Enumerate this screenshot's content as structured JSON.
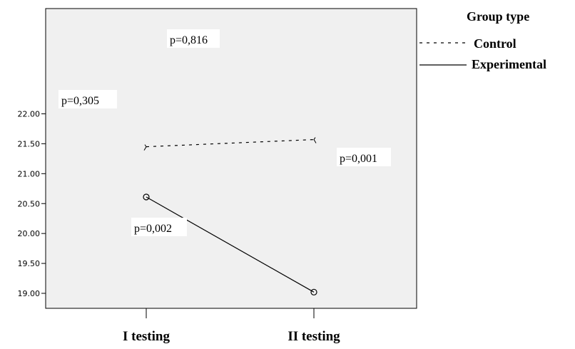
{
  "chart_data": {
    "type": "line",
    "categories": [
      "I testing",
      "II testing"
    ],
    "ylim": [
      18.9,
      22.2
    ],
    "yticks": [
      "19.00",
      "19.50",
      "20.00",
      "20.50",
      "21.00",
      "21.50",
      "22.00"
    ],
    "series": [
      {
        "name": "Control",
        "values": [
          21.45,
          21.57
        ],
        "style": "dashed",
        "color": "#000000",
        "markers": false
      },
      {
        "name": "Experimental",
        "values": [
          20.61,
          19.02
        ],
        "style": "solid",
        "color": "#000000",
        "markers": true
      }
    ],
    "legend": {
      "title": "Group type",
      "placement": "right"
    },
    "annotations": [
      {
        "id": "control-change",
        "text": "p=0,816"
      },
      {
        "id": "baseline-diff",
        "text": "p=0,305"
      },
      {
        "id": "final-diff",
        "text": "p=0,001"
      },
      {
        "id": "experimental-change",
        "text": "p=0,002"
      }
    ],
    "plot_background": "#f0f0f0",
    "grid": false
  }
}
